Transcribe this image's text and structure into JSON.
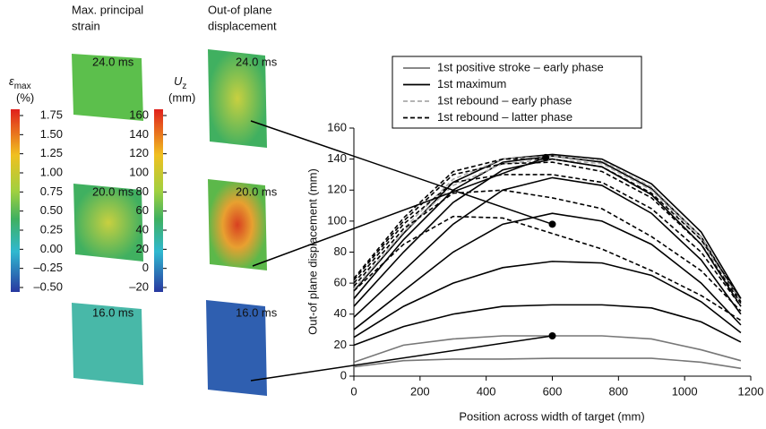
{
  "panels": {
    "strain_title": [
      "Max. principal",
      "strain"
    ],
    "disp_title": [
      "Out-of plane",
      "displacement"
    ],
    "times": [
      "24.0 ms",
      "20.0 ms",
      "16.0 ms"
    ],
    "strain_symbol": "ε",
    "strain_sub": "max",
    "strain_unit": "(%)",
    "strain_labels": [
      "1.75",
      "1.50",
      "1.25",
      "1.00",
      "0.75",
      "0.50",
      "0.25",
      "0.00",
      "–0.25",
      "–0.50"
    ],
    "disp_symbol": "U",
    "disp_sub": "z",
    "disp_unit": "(mm)",
    "disp_labels": [
      "160",
      "140",
      "120",
      "100",
      "80",
      "60",
      "40",
      "20",
      "0",
      "–20"
    ]
  },
  "chart_data": {
    "type": "line",
    "x_label": "Position across width of target (mm)",
    "y_label": "Out-of plane displacement (mm)",
    "x": [
      0,
      150,
      300,
      450,
      600,
      750,
      900,
      1050,
      1170
    ],
    "series": [
      {
        "name": "1st positive stroke – early phase",
        "color": "#777777",
        "dash": "none",
        "curves": [
          [
            6,
            10,
            11,
            11,
            11.5,
            11.5,
            11.5,
            9,
            5
          ],
          [
            9,
            20,
            24,
            26,
            26,
            26,
            24,
            17,
            10
          ]
        ]
      },
      {
        "name": "1st maximum",
        "color": "#000000",
        "dash": "none",
        "curves": [
          [
            20,
            32,
            40,
            45,
            46,
            46,
            44,
            35,
            22
          ],
          [
            25,
            45,
            60,
            70,
            74,
            73,
            65,
            48,
            28
          ],
          [
            30,
            55,
            80,
            98,
            105,
            100,
            85,
            60,
            33
          ],
          [
            38,
            68,
            98,
            120,
            128,
            123,
            105,
            75,
            40
          ],
          [
            45,
            80,
            112,
            133,
            140,
            135,
            117,
            85,
            45
          ],
          [
            50,
            88,
            120,
            138,
            142,
            138,
            121,
            90,
            48
          ],
          [
            55,
            92,
            125,
            140,
            143,
            140,
            124,
            93,
            50
          ]
        ]
      },
      {
        "name": "1st rebound – early phase",
        "color": "#aaaaaa",
        "dash": "5,3",
        "curves": [
          [
            58,
            95,
            127,
            140,
            142,
            139,
            122,
            90,
            48
          ],
          [
            56,
            93,
            123,
            137,
            140,
            137,
            120,
            88,
            46
          ]
        ]
      },
      {
        "name": "1st rebound – latter phase",
        "color": "#000000",
        "dash": "5,3",
        "curves": [
          [
            55,
            85,
            103,
            102,
            92,
            82,
            68,
            52,
            36
          ],
          [
            58,
            95,
            118,
            120,
            115,
            108,
            90,
            68,
            42
          ],
          [
            60,
            98,
            125,
            130,
            130,
            125,
            108,
            80,
            45
          ],
          [
            62,
            100,
            130,
            137,
            138,
            132,
            115,
            85,
            47
          ],
          [
            63,
            102,
            132,
            140,
            140,
            135,
            118,
            88,
            50
          ]
        ]
      }
    ],
    "markers": {
      "x": [
        580,
        600,
        600
      ],
      "y": [
        141,
        98,
        26
      ]
    },
    "xlim": [
      0,
      1200
    ],
    "xticks": [
      0,
      200,
      400,
      600,
      800,
      1000,
      1200
    ],
    "ylim": [
      0,
      160
    ],
    "yticks": [
      0,
      20,
      40,
      60,
      80,
      100,
      120,
      140,
      160
    ]
  }
}
